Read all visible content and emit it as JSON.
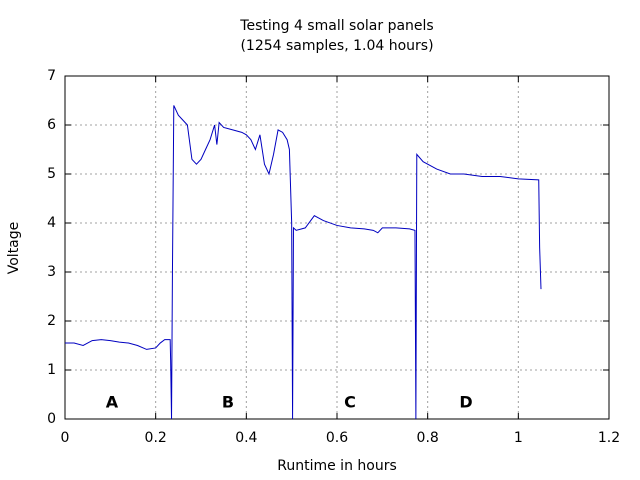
{
  "chart_data": {
    "type": "line",
    "title": "Testing 4 small solar panels",
    "subtitle": "(1254 samples, 1.04 hours)",
    "x_label": "Runtime in hours",
    "y_label": "Voltage",
    "annotations": [
      "A",
      "B",
      "C",
      "D"
    ],
    "xlim": [
      0,
      1.2
    ],
    "xticks": [
      0,
      0.2,
      0.4,
      0.6,
      0.8,
      1,
      1.2
    ],
    "ylim": [
      0,
      7
    ],
    "yticks": [
      0,
      1,
      2,
      3,
      4,
      5,
      6,
      7
    ],
    "grid": true,
    "series": [
      {
        "color": "#0000c0",
        "x": [
          0,
          0.02,
          0.04,
          0.06,
          0.08,
          0.1,
          0.12,
          0.14,
          0.16,
          0.18,
          0.2,
          0.21,
          0.22,
          0.232,
          0.233,
          0.235,
          0.237,
          0.24,
          0.25,
          0.26,
          0.27,
          0.28,
          0.29,
          0.3,
          0.31,
          0.32,
          0.33,
          0.335,
          0.34,
          0.35,
          0.37,
          0.39,
          0.4,
          0.41,
          0.42,
          0.43,
          0.44,
          0.45,
          0.46,
          0.47,
          0.48,
          0.49,
          0.495,
          0.5,
          0.502,
          0.504,
          0.51,
          0.53,
          0.55,
          0.57,
          0.6,
          0.63,
          0.66,
          0.68,
          0.69,
          0.7,
          0.73,
          0.76,
          0.772,
          0.774,
          0.776,
          0.79,
          0.82,
          0.85,
          0.88,
          0.92,
          0.96,
          1.0,
          1.045,
          1.047,
          1.05
        ],
        "values": [
          1.55,
          1.55,
          1.5,
          1.6,
          1.62,
          1.6,
          1.57,
          1.55,
          1.5,
          1.42,
          1.45,
          1.55,
          1.62,
          1.62,
          1.2,
          0,
          3.0,
          6.4,
          6.2,
          6.1,
          6.0,
          5.3,
          5.2,
          5.3,
          5.5,
          5.7,
          6.0,
          5.6,
          6.05,
          5.95,
          5.9,
          5.85,
          5.8,
          5.7,
          5.5,
          5.8,
          5.2,
          5.0,
          5.4,
          5.9,
          5.85,
          5.7,
          5.5,
          4.0,
          0,
          3.9,
          3.85,
          3.9,
          4.15,
          4.05,
          3.95,
          3.9,
          3.88,
          3.85,
          3.8,
          3.9,
          3.9,
          3.88,
          3.85,
          0,
          5.4,
          5.25,
          5.1,
          5.0,
          5.0,
          4.95,
          4.95,
          4.9,
          4.88,
          3.5,
          2.65
        ]
      }
    ]
  }
}
